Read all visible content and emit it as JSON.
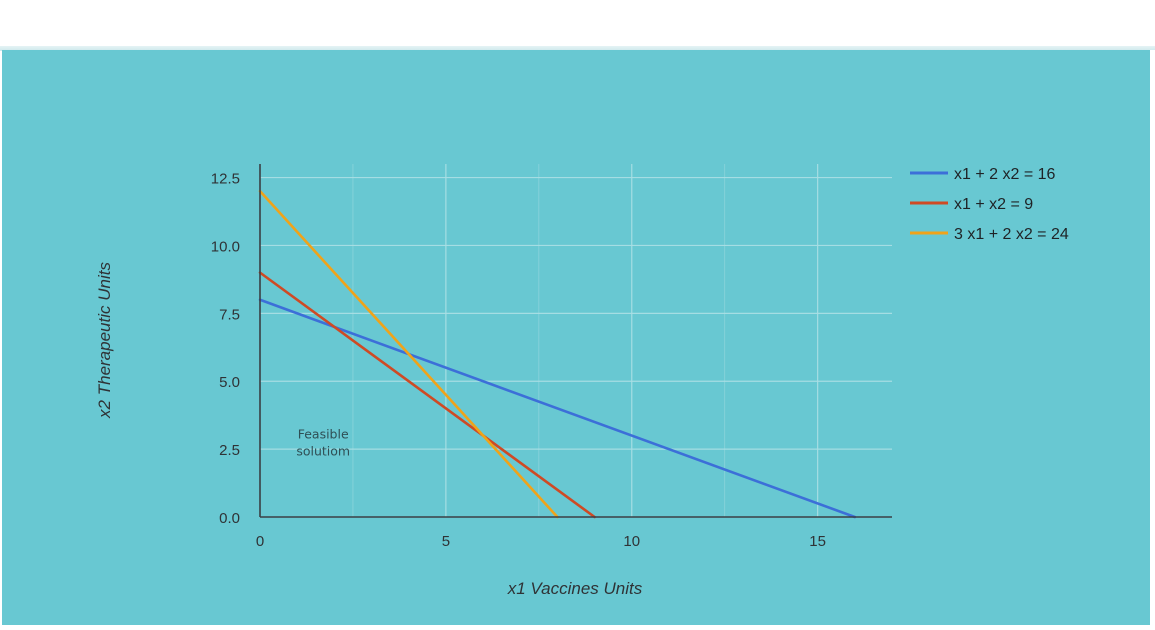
{
  "colors": {
    "panel_background": "#68c8d2",
    "gridline": "#a9dee4",
    "axis": "#3a3f44",
    "tick_text": "#2f3336",
    "annotation_text": "#2f4f55"
  },
  "chart_data": {
    "type": "line",
    "title": "",
    "xlabel": "x1 Vaccines Units",
    "ylabel": "x2 Therapeutic Units",
    "xlim": [
      0,
      17
    ],
    "ylim": [
      0,
      13
    ],
    "xticks": [
      0,
      5,
      10,
      15
    ],
    "yticks": [
      0.0,
      2.5,
      5.0,
      7.5,
      10.0,
      12.5
    ],
    "xtick_labels": [
      "0",
      "5",
      "10",
      "15"
    ],
    "ytick_labels": [
      "0.0",
      "2.5",
      "5.0",
      "7.5",
      "10.0",
      "12.5"
    ],
    "grid": true,
    "legend_position": "top-right",
    "series": [
      {
        "name": "x1 + 2 x2 = 16",
        "color": "#3c6fd8",
        "x": [
          0,
          16
        ],
        "y": [
          8,
          0
        ]
      },
      {
        "name": "x1 + x2 = 9",
        "color": "#cf4a24",
        "x": [
          0,
          9
        ],
        "y": [
          9,
          0
        ]
      },
      {
        "name": "3 x1 + 2 x2 = 24",
        "color": "#f0a319",
        "x": [
          0,
          8
        ],
        "y": [
          12,
          0
        ]
      }
    ],
    "annotations": [
      {
        "lines": [
          "Feasible",
          "solutiom"
        ],
        "x": 1.7,
        "y": 2.9
      }
    ]
  }
}
